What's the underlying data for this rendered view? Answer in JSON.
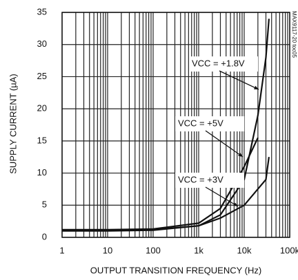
{
  "chart_data": {
    "type": "line",
    "x_label": "OUTPUT TRANSITION FREQUENCY (Hz)",
    "y_label": "SUPPLY CURRENT (µA)",
    "side_note": "MAX9117-20 toc05",
    "xscale": "log",
    "xlim": [
      1,
      100000
    ],
    "ylim": [
      0,
      35
    ],
    "xticks": [
      1,
      10,
      100,
      {
        "value": 1000,
        "label": "1k"
      },
      {
        "value": 10000,
        "label": "10k"
      },
      {
        "value": 100000,
        "label": "100k"
      }
    ],
    "yticks": [
      0,
      5,
      10,
      15,
      20,
      25,
      30,
      35
    ],
    "grid": true,
    "minor_grid": true,
    "series": [
      {
        "name": "VCC = +1.8V",
        "color": "#111111",
        "x": [
          1,
          10,
          100,
          1000,
          3000,
          10000,
          20000,
          30000,
          35000
        ],
        "values": [
          1.0,
          1.0,
          1.1,
          1.8,
          3.5,
          9,
          19,
          28,
          34
        ]
      },
      {
        "name": "VCC = +5V",
        "color": "#111111",
        "x": [
          1,
          10,
          100,
          1000,
          3000,
          10000,
          20000
        ],
        "values": [
          1.2,
          1.2,
          1.3,
          2.2,
          4.5,
          11,
          15.5
        ]
      },
      {
        "name": "VCC = +3V",
        "color": "#111111",
        "x": [
          1,
          10,
          100,
          1000,
          3000,
          10000,
          30000,
          35000
        ],
        "values": [
          1.1,
          1.1,
          1.2,
          1.8,
          3,
          5,
          9,
          12.5
        ]
      }
    ]
  }
}
